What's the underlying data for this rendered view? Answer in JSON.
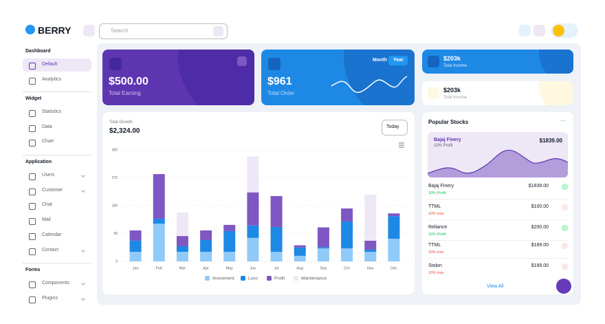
{
  "header": {
    "brand": "BERRY",
    "search_placeholder": "Search"
  },
  "sidebar": [
    {
      "title": "Dashboard",
      "items": [
        {
          "label": "Default",
          "active": true
        },
        {
          "label": "Analytics"
        }
      ]
    },
    {
      "title": "Widget",
      "items": [
        {
          "label": "Statistics"
        },
        {
          "label": "Data"
        },
        {
          "label": "Chart"
        }
      ]
    },
    {
      "title": "Application",
      "items": [
        {
          "label": "Users",
          "has_submenu": true
        },
        {
          "label": "Customer",
          "has_submenu": true
        },
        {
          "label": "Chat"
        },
        {
          "label": "Mail"
        },
        {
          "label": "Calendar"
        },
        {
          "label": "Contact",
          "has_submenu": true
        }
      ]
    },
    {
      "title": "Forms",
      "items": [
        {
          "label": "Components",
          "has_submenu": true
        },
        {
          "label": "Plugins",
          "has_submenu": true
        }
      ]
    }
  ],
  "cards": {
    "earning": {
      "value": "$500.00",
      "label": "Total Earning"
    },
    "order": {
      "value": "$961",
      "label": "Total Order",
      "toggle": [
        "Month",
        "Year"
      ]
    },
    "income_dark": {
      "value": "$203k",
      "label": "Total Income"
    },
    "income_light": {
      "value": "$203k",
      "label": "Total Income"
    }
  },
  "chart_data": {
    "type": "stacked_bar",
    "subtitle": "Total Growth",
    "title": "$2,324.00",
    "dropdown": "Today",
    "categories": [
      "Jan",
      "Feb",
      "Mar",
      "Apr",
      "May",
      "Jun",
      "Jul",
      "Aug",
      "Sep",
      "Oct",
      "Nov",
      "Dec"
    ],
    "series": [
      {
        "name": "Investment",
        "color": "#90caf9",
        "values": [
          31,
          122,
          31,
          31,
          31,
          76,
          31,
          18,
          42,
          42,
          31,
          73
        ]
      },
      {
        "name": "Loss",
        "color": "#1e88e5",
        "values": [
          36,
          16,
          18,
          38,
          67,
          40,
          80,
          27,
          4,
          87,
          7,
          73
        ]
      },
      {
        "name": "Profit",
        "color": "#7e57c2",
        "values": [
          33,
          144,
          33,
          31,
          20,
          107,
          100,
          7,
          64,
          42,
          29,
          9
        ]
      },
      {
        "name": "Maintenance",
        "color": "#ede7f6",
        "values": [
          0,
          0,
          76,
          0,
          0,
          116,
          0,
          0,
          0,
          0,
          149,
          0
        ]
      }
    ],
    "ylim": [
      0,
      360
    ],
    "yticks": [
      0,
      90,
      180,
      270,
      360
    ],
    "grid": true
  },
  "stocks": {
    "title": "Popular Stocks",
    "featured": {
      "name": "Bajaj Finery",
      "sub": "10% Profit",
      "price": "$1839.00"
    },
    "rows": [
      {
        "name": "Bajaj Finery",
        "sub": "10% Profit",
        "price": "$1839.00",
        "trend": "up"
      },
      {
        "name": "TTML",
        "sub": "10% loss",
        "price": "$100.00",
        "trend": "down"
      },
      {
        "name": "Reliance",
        "sub": "10% Profit",
        "price": "$200.00",
        "trend": "up"
      },
      {
        "name": "TTML",
        "sub": "10% loss",
        "price": "$189.00",
        "trend": "down"
      },
      {
        "name": "Stolon",
        "sub": "10% loss",
        "price": "$189.00",
        "trend": "down"
      }
    ],
    "link": "View All"
  }
}
